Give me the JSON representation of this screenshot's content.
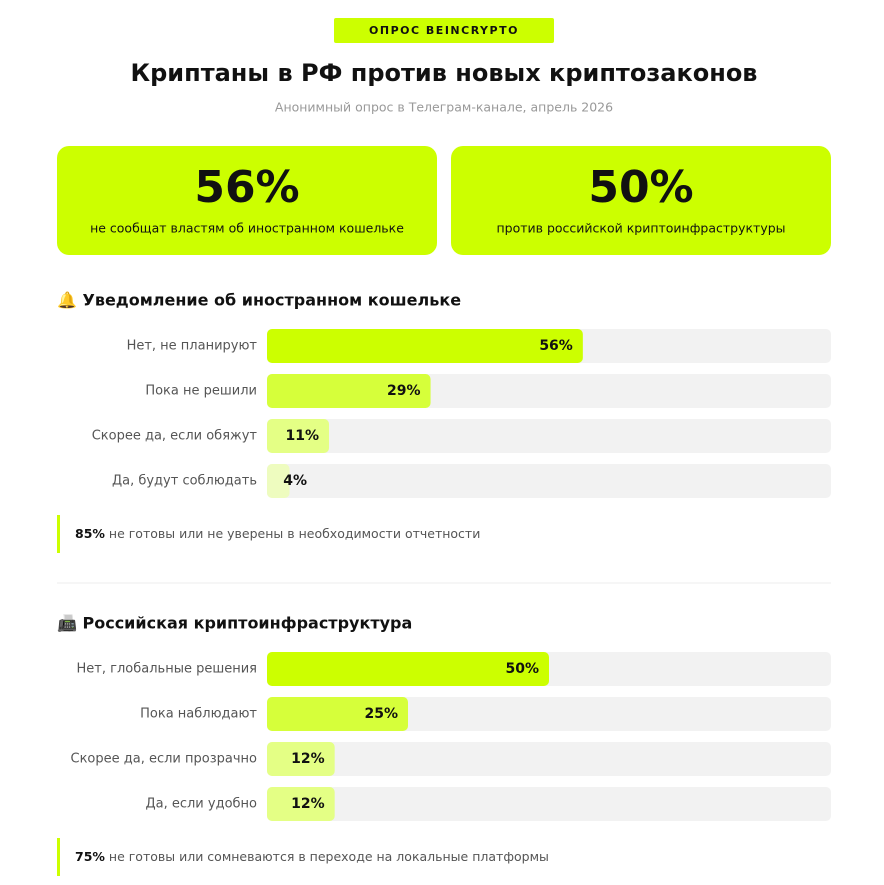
{
  "badge": "ОПРОС BEINCRYPTO",
  "title": "Криптаны в РФ против новых криптозаконов",
  "subtitle": "Анонимный опрос в Телеграм-канале, апрель 2026",
  "stats": [
    {
      "value": "56%",
      "label": "не сообщат властям об иностранном кошельке"
    },
    {
      "value": "50%",
      "label": "против российской криптоинфраструктуры"
    }
  ],
  "chart_data": [
    {
      "type": "bar",
      "orientation": "horizontal",
      "title": "🔔 Уведомление об иностранном кошельке",
      "categories": [
        "Нет, не планируют",
        "Пока не решили",
        "Скорее да, если обяжут",
        "Да, будут соблюдать"
      ],
      "values": [
        56,
        29,
        11,
        4
      ],
      "value_labels": [
        "56%",
        "29%",
        "11%",
        "4%"
      ],
      "colors": [
        "#ccff00",
        "#d6ff3a",
        "#e4ff85",
        "#eefcbf"
      ],
      "track_color": "#f2f2f2",
      "xlim": [
        0,
        100
      ],
      "note": {
        "highlight": "85%",
        "text": "не готовы или не уверены в необходимости отчетности"
      }
    },
    {
      "type": "bar",
      "orientation": "horizontal",
      "title": "📠 Российская криптоинфраструктура",
      "categories": [
        "Нет, глобальные решения",
        "Пока наблюдают",
        "Скорее да, если прозрачно",
        "Да, если удобно"
      ],
      "values": [
        50,
        25,
        12,
        12
      ],
      "value_labels": [
        "50%",
        "25%",
        "12%",
        "12%"
      ],
      "colors": [
        "#ccff00",
        "#d6ff3a",
        "#e4ff85",
        "#e4ff85"
      ],
      "track_color": "#f2f2f2",
      "xlim": [
        0,
        100
      ],
      "note": {
        "highlight": "75%",
        "text": "не готовы или сомневаются в переходе на локальные платформы"
      }
    }
  ]
}
